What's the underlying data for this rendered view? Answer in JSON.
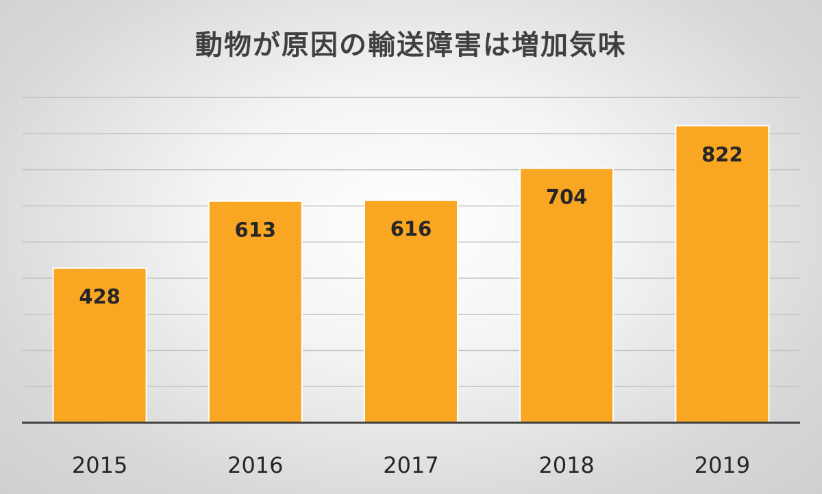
{
  "chart_data": {
    "type": "bar",
    "title": "動物が原因の輸送障害は増加気味",
    "categories": [
      "2015",
      "2016",
      "2017",
      "2018",
      "2019"
    ],
    "values": [
      428,
      613,
      616,
      704,
      822
    ],
    "ylim": [
      0,
      900
    ],
    "y_grid_step": 100,
    "grid": true,
    "data_labels": true,
    "xlabel": "",
    "ylabel": "",
    "colors": {
      "bar": "#f9a623",
      "axis": "#404040",
      "grid": "#c4c4c4",
      "title": "#404040"
    }
  }
}
